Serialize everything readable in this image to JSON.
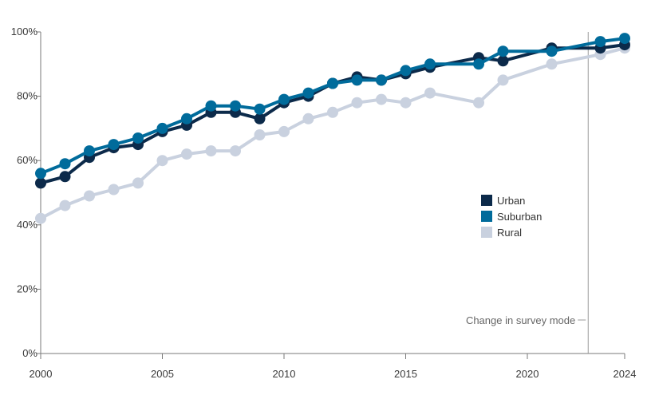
{
  "chart_data": {
    "type": "line",
    "title": "",
    "xlabel": "",
    "ylabel": "",
    "xlim": [
      2000,
      2024
    ],
    "ylim": [
      0,
      100
    ],
    "x_ticks": [
      2000,
      2005,
      2010,
      2015,
      2020,
      2024
    ],
    "x_tick_labels": [
      "2000",
      "2005",
      "2010",
      "2015",
      "2020",
      "2024"
    ],
    "y_ticks": [
      0,
      20,
      40,
      60,
      80,
      100
    ],
    "y_tick_labels": [
      "0%",
      "20%",
      "40%",
      "60%",
      "80%",
      "100%"
    ],
    "grid": false,
    "legend_position": "right",
    "annotation": {
      "label": "Change in survey mode",
      "x": 2022.5
    },
    "series": [
      {
        "name": "Rural",
        "color": "#c9d1df",
        "points": [
          [
            2000,
            42
          ],
          [
            2001,
            46
          ],
          [
            2002,
            49
          ],
          [
            2003,
            51
          ],
          [
            2004,
            53
          ],
          [
            2005,
            60
          ],
          [
            2006,
            62
          ],
          [
            2007,
            63
          ],
          [
            2008,
            63
          ],
          [
            2009,
            68
          ],
          [
            2010,
            69
          ],
          [
            2011,
            73
          ],
          [
            2012,
            75
          ],
          [
            2013,
            78
          ],
          [
            2014,
            79
          ],
          [
            2015,
            78
          ],
          [
            2016,
            81
          ],
          [
            2018,
            78
          ],
          [
            2019,
            85
          ],
          [
            2021,
            90
          ],
          [
            2023,
            93
          ],
          [
            2024,
            95
          ]
        ]
      },
      {
        "name": "Urban",
        "color": "#0c2a4a",
        "points": [
          [
            2000,
            53
          ],
          [
            2001,
            55
          ],
          [
            2002,
            61
          ],
          [
            2003,
            64
          ],
          [
            2004,
            65
          ],
          [
            2005,
            69
          ],
          [
            2006,
            71
          ],
          [
            2007,
            75
          ],
          [
            2008,
            75
          ],
          [
            2009,
            73
          ],
          [
            2010,
            78
          ],
          [
            2011,
            80
          ],
          [
            2012,
            84
          ],
          [
            2013,
            86
          ],
          [
            2014,
            85
          ],
          [
            2015,
            87
          ],
          [
            2016,
            89
          ],
          [
            2018,
            92
          ],
          [
            2019,
            91
          ],
          [
            2021,
            95
          ],
          [
            2023,
            95
          ],
          [
            2024,
            96
          ]
        ]
      },
      {
        "name": "Suburban",
        "color": "#006b9b",
        "points": [
          [
            2000,
            56
          ],
          [
            2001,
            59
          ],
          [
            2002,
            63
          ],
          [
            2003,
            65
          ],
          [
            2004,
            67
          ],
          [
            2005,
            70
          ],
          [
            2006,
            73
          ],
          [
            2007,
            77
          ],
          [
            2008,
            77
          ],
          [
            2009,
            76
          ],
          [
            2010,
            79
          ],
          [
            2011,
            81
          ],
          [
            2012,
            84
          ],
          [
            2013,
            85
          ],
          [
            2014,
            85
          ],
          [
            2015,
            88
          ],
          [
            2016,
            90
          ],
          [
            2018,
            90
          ],
          [
            2019,
            94
          ],
          [
            2021,
            94
          ],
          [
            2023,
            97
          ],
          [
            2024,
            98
          ]
        ]
      }
    ],
    "legend_order": [
      "Urban",
      "Suburban",
      "Rural"
    ]
  }
}
